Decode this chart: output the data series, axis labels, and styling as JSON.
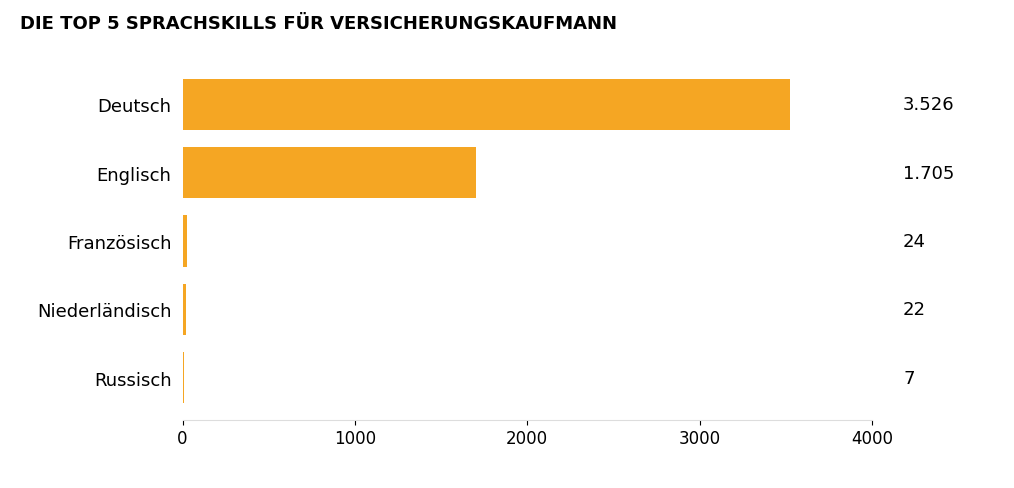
{
  "title": "DIE TOP 5 SPRACHSKILLS FÜR VERSICHERUNGSKAUFMANN",
  "categories": [
    "Russisch",
    "Niederländisch",
    "Französisch",
    "Englisch",
    "Deutsch"
  ],
  "values": [
    7,
    22,
    24,
    1705,
    3526
  ],
  "labels": [
    "7",
    "22",
    "24",
    "1.705",
    "3.526"
  ],
  "bar_color": "#F5A623",
  "background_color": "#ffffff",
  "xlim": [
    0,
    4000
  ],
  "xticks": [
    0,
    1000,
    2000,
    3000,
    4000
  ],
  "title_fontsize": 13,
  "label_fontsize": 13,
  "tick_fontsize": 12,
  "value_fontsize": 13,
  "bar_height": 0.75
}
